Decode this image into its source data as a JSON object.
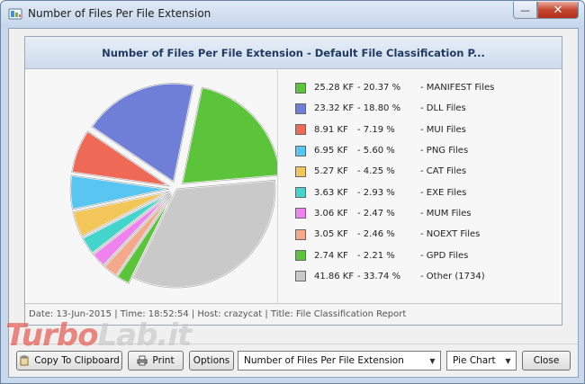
{
  "window": {
    "title": "Number of Files Per File Extension",
    "minimize_glyph": "—",
    "close_glyph": "✕"
  },
  "chart": {
    "title": "Number of Files Per File Extension - Default File Classification P...",
    "status": "Date: 13-Jun-2015 | Time: 18:52:54 | Host: crazycat | Title: File Classification Report"
  },
  "chart_data": {
    "type": "pie",
    "title": "Number of Files Per File Extension - Default File Classification P...",
    "slices": [
      {
        "value": "25.28 KF",
        "percent": "20.37 %",
        "label": "MANIFEST Files",
        "pct": 20.37,
        "color": "#5cc43a",
        "exploded": true
      },
      {
        "value": "23.32 KF",
        "percent": "18.80 %",
        "label": "DLL Files",
        "pct": 18.8,
        "color": "#6f7fd8",
        "exploded": true
      },
      {
        "value": "8.91 KF",
        "percent": "7.19 %",
        "label": "MUI Files",
        "pct": 7.19,
        "color": "#ee6a57",
        "exploded": true
      },
      {
        "value": "6.95 KF",
        "percent": "5.60 %",
        "label": "PNG Files",
        "pct": 5.6,
        "color": "#58c6f0",
        "exploded": true
      },
      {
        "value": "5.27 KF",
        "percent": "4.25 %",
        "label": "CAT Files",
        "pct": 4.25,
        "color": "#f3c65a",
        "exploded": true
      },
      {
        "value": "3.63 KF",
        "percent": "2.93 %",
        "label": "EXE Files",
        "pct": 2.93,
        "color": "#43d4cc",
        "exploded": true
      },
      {
        "value": "3.06 KF",
        "percent": "2.47 %",
        "label": "MUM Files",
        "pct": 2.47,
        "color": "#ee82ee",
        "exploded": true
      },
      {
        "value": "3.05 KF",
        "percent": "2.46 %",
        "label": "NOEXT Files",
        "pct": 2.46,
        "color": "#f3a98a",
        "exploded": true
      },
      {
        "value": "2.74 KF",
        "percent": "2.21 %",
        "label": "GPD Files",
        "pct": 2.21,
        "color": "#5ac43a",
        "exploded": true
      },
      {
        "value": "41.86 KF",
        "percent": "33.74 %",
        "label": "Other (1734)",
        "pct": 33.74,
        "color": "#c9c9c9",
        "exploded": false
      }
    ],
    "legend_position": "right"
  },
  "buttons": {
    "copy": "Copy To Clipboard",
    "print": "Print",
    "options": "Options",
    "close": "Close"
  },
  "combos": {
    "report": "Number of Files Per File Extension",
    "chart_type": "Pie Chart"
  },
  "watermark": {
    "brand_a": "Turbo",
    "brand_b": "Lab.it"
  }
}
